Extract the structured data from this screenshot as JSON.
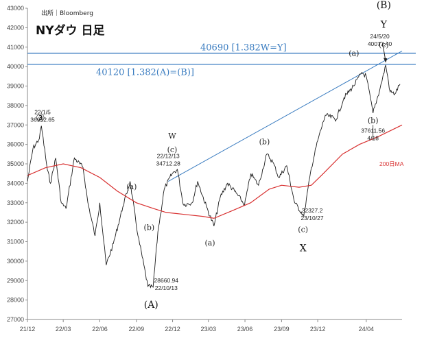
{
  "chart_data": {
    "type": "line",
    "title": "NYダウ 日足",
    "source": "出所｜Bloomberg",
    "y_ticks": [
      27000,
      28000,
      29000,
      30000,
      31000,
      32000,
      33000,
      34000,
      35000,
      36000,
      37000,
      38000,
      39000,
      40000,
      41000,
      42000,
      43000
    ],
    "ylim": [
      27000,
      43000
    ],
    "x_tick_labels": [
      "21/12",
      "22/03",
      "22/06",
      "22/09",
      "22/12",
      "23/03",
      "23/06",
      "23/09",
      "23/12",
      "24/04"
    ],
    "x_tick_dates": [
      "2021-12-01",
      "2022-03-01",
      "2022-06-01",
      "2022-09-01",
      "2022-12-01",
      "2023-03-01",
      "2023-06-01",
      "2023-09-01",
      "2023-12-01",
      "2024-04-01"
    ],
    "xlim": [
      "2021-12-01",
      "2024-06-30"
    ],
    "grid": false,
    "series": [
      {
        "name": "",
        "role": "price",
        "color": "#1a1a1a",
        "points": [
          [
            "2021-12-01",
            34100
          ],
          [
            "2021-12-15",
            35800
          ],
          [
            "2021-12-31",
            36300
          ],
          [
            "2022-01-05",
            36952.65
          ],
          [
            "2022-01-20",
            34700
          ],
          [
            "2022-01-28",
            34000
          ],
          [
            "2022-02-10",
            35300
          ],
          [
            "2022-02-24",
            33000
          ],
          [
            "2022-03-08",
            32700
          ],
          [
            "2022-03-29",
            35300
          ],
          [
            "2022-04-20",
            34800
          ],
          [
            "2022-05-02",
            33000
          ],
          [
            "2022-05-20",
            31300
          ],
          [
            "2022-06-01",
            33000
          ],
          [
            "2022-06-17",
            29800
          ],
          [
            "2022-07-05",
            30900
          ],
          [
            "2022-07-29",
            32800
          ],
          [
            "2022-08-16",
            34100
          ],
          [
            "2022-09-05",
            31300
          ],
          [
            "2022-09-30",
            28700
          ],
          [
            "2022-10-13",
            28660.94
          ],
          [
            "2022-10-25",
            31500
          ],
          [
            "2022-11-10",
            33700
          ],
          [
            "2022-11-30",
            34500
          ],
          [
            "2022-12-13",
            34712.28
          ],
          [
            "2022-12-28",
            32900
          ],
          [
            "2023-01-19",
            33000
          ],
          [
            "2023-02-02",
            34100
          ],
          [
            "2023-02-24",
            32800
          ],
          [
            "2023-03-15",
            31800
          ],
          [
            "2023-03-31",
            33300
          ],
          [
            "2023-04-18",
            34000
          ],
          [
            "2023-05-10",
            33500
          ],
          [
            "2023-05-31",
            32900
          ],
          [
            "2023-06-16",
            34500
          ],
          [
            "2023-07-05",
            33900
          ],
          [
            "2023-07-26",
            35500
          ],
          [
            "2023-08-10",
            35100
          ],
          [
            "2023-08-25",
            34300
          ],
          [
            "2023-09-14",
            34900
          ],
          [
            "2023-10-04",
            33000
          ],
          [
            "2023-10-27",
            32327.2
          ],
          [
            "2023-11-15",
            34800
          ],
          [
            "2023-12-01",
            36200
          ],
          [
            "2023-12-20",
            37500
          ],
          [
            "2024-01-17",
            37300
          ],
          [
            "2024-02-05",
            38400
          ],
          [
            "2024-02-29",
            39000
          ],
          [
            "2024-03-21",
            39700
          ],
          [
            "2024-04-01",
            39500
          ],
          [
            "2024-04-18",
            37611.56
          ],
          [
            "2024-05-06",
            38900
          ],
          [
            "2024-05-20",
            40077.4
          ],
          [
            "2024-05-31",
            38700
          ],
          [
            "2024-06-12",
            38600
          ],
          [
            "2024-06-25",
            39100
          ]
        ]
      },
      {
        "name": "200日MA",
        "role": "moving_average",
        "color": "#d83030",
        "points": [
          [
            "2021-12-01",
            34400
          ],
          [
            "2022-01-15",
            34800
          ],
          [
            "2022-03-01",
            35000
          ],
          [
            "2022-04-15",
            34800
          ],
          [
            "2022-06-01",
            34300
          ],
          [
            "2022-07-15",
            33600
          ],
          [
            "2022-09-01",
            33000
          ],
          [
            "2022-10-15",
            32700
          ],
          [
            "2022-11-15",
            32500
          ],
          [
            "2023-01-01",
            32400
          ],
          [
            "2023-02-15",
            32300
          ],
          [
            "2023-03-15",
            32200
          ],
          [
            "2023-05-01",
            32600
          ],
          [
            "2023-06-15",
            33000
          ],
          [
            "2023-08-01",
            33700
          ],
          [
            "2023-09-01",
            33900
          ],
          [
            "2023-10-15",
            33800
          ],
          [
            "2023-11-15",
            33900
          ],
          [
            "2023-12-15",
            34500
          ],
          [
            "2024-02-01",
            35500
          ],
          [
            "2024-03-15",
            36000
          ],
          [
            "2024-05-01",
            36400
          ],
          [
            "2024-06-30",
            37000
          ]
        ]
      }
    ],
    "ma_label": "200日MA",
    "horizontal_levels": [
      {
        "value": 40690,
        "label": "40690 [1.382W=Y]",
        "color": "#3a7cc0"
      },
      {
        "value": 40120,
        "label": "40120 [1.382(A)=(B)]",
        "color": "#3a7cc0"
      }
    ],
    "trendline": {
      "from": [
        "2022-11-20",
        34100
      ],
      "to": [
        "2024-06-30",
        40800
      ],
      "color": "#3a7cc0"
    },
    "circled_label": "③",
    "wave_labels": [
      {
        "date": "2022-08-20",
        "value": 33700,
        "text": "(a)"
      },
      {
        "date": "2022-11-30",
        "value": 35600,
        "text": "(c)"
      },
      {
        "date": "2022-11-30",
        "value": 36300,
        "text": "W"
      },
      {
        "date": "2022-10-03",
        "value": 31600,
        "text": "(b)"
      },
      {
        "date": "2022-10-08",
        "value": 27600,
        "text": "(A)",
        "big": true
      },
      {
        "date": "2023-03-05",
        "value": 30800,
        "text": "(a)"
      },
      {
        "date": "2023-07-20",
        "value": 36000,
        "text": "(b)"
      },
      {
        "date": "2023-10-25",
        "value": 31500,
        "text": "(c)"
      },
      {
        "date": "2023-10-25",
        "value": 30500,
        "text": "X",
        "big": true
      },
      {
        "date": "2024-03-01",
        "value": 40550,
        "text": "(a)"
      },
      {
        "date": "2024-05-15",
        "value": 41000,
        "text": "(c)"
      },
      {
        "date": "2024-04-18",
        "value": 37100,
        "text": "(b)"
      },
      {
        "date": "2024-05-15",
        "value": 42000,
        "text": "Y",
        "big": true
      },
      {
        "date": "2024-05-15",
        "value": 43000,
        "text": "(B)",
        "big": true
      }
    ],
    "point_annotations": [
      {
        "date": "2022-01-08",
        "value": 37550,
        "lines": [
          "22/1/5",
          "36952.65"
        ]
      },
      {
        "date": "2022-11-20",
        "value": 35300,
        "lines": [
          "22/12/13",
          "34712.28"
        ]
      },
      {
        "date": "2022-11-15",
        "value": 28900,
        "lines": [
          "28660.94",
          "22/10/13"
        ]
      },
      {
        "date": "2023-11-17",
        "value": 32500,
        "lines": [
          "32327.2",
          "23/10/27"
        ]
      },
      {
        "date": "2024-04-18",
        "value": 36600,
        "lines": [
          "37611.56",
          "4/18"
        ]
      },
      {
        "date": "2024-05-05",
        "value": 41450,
        "lines": [
          "24/5/20",
          "40077.40"
        ]
      }
    ]
  }
}
